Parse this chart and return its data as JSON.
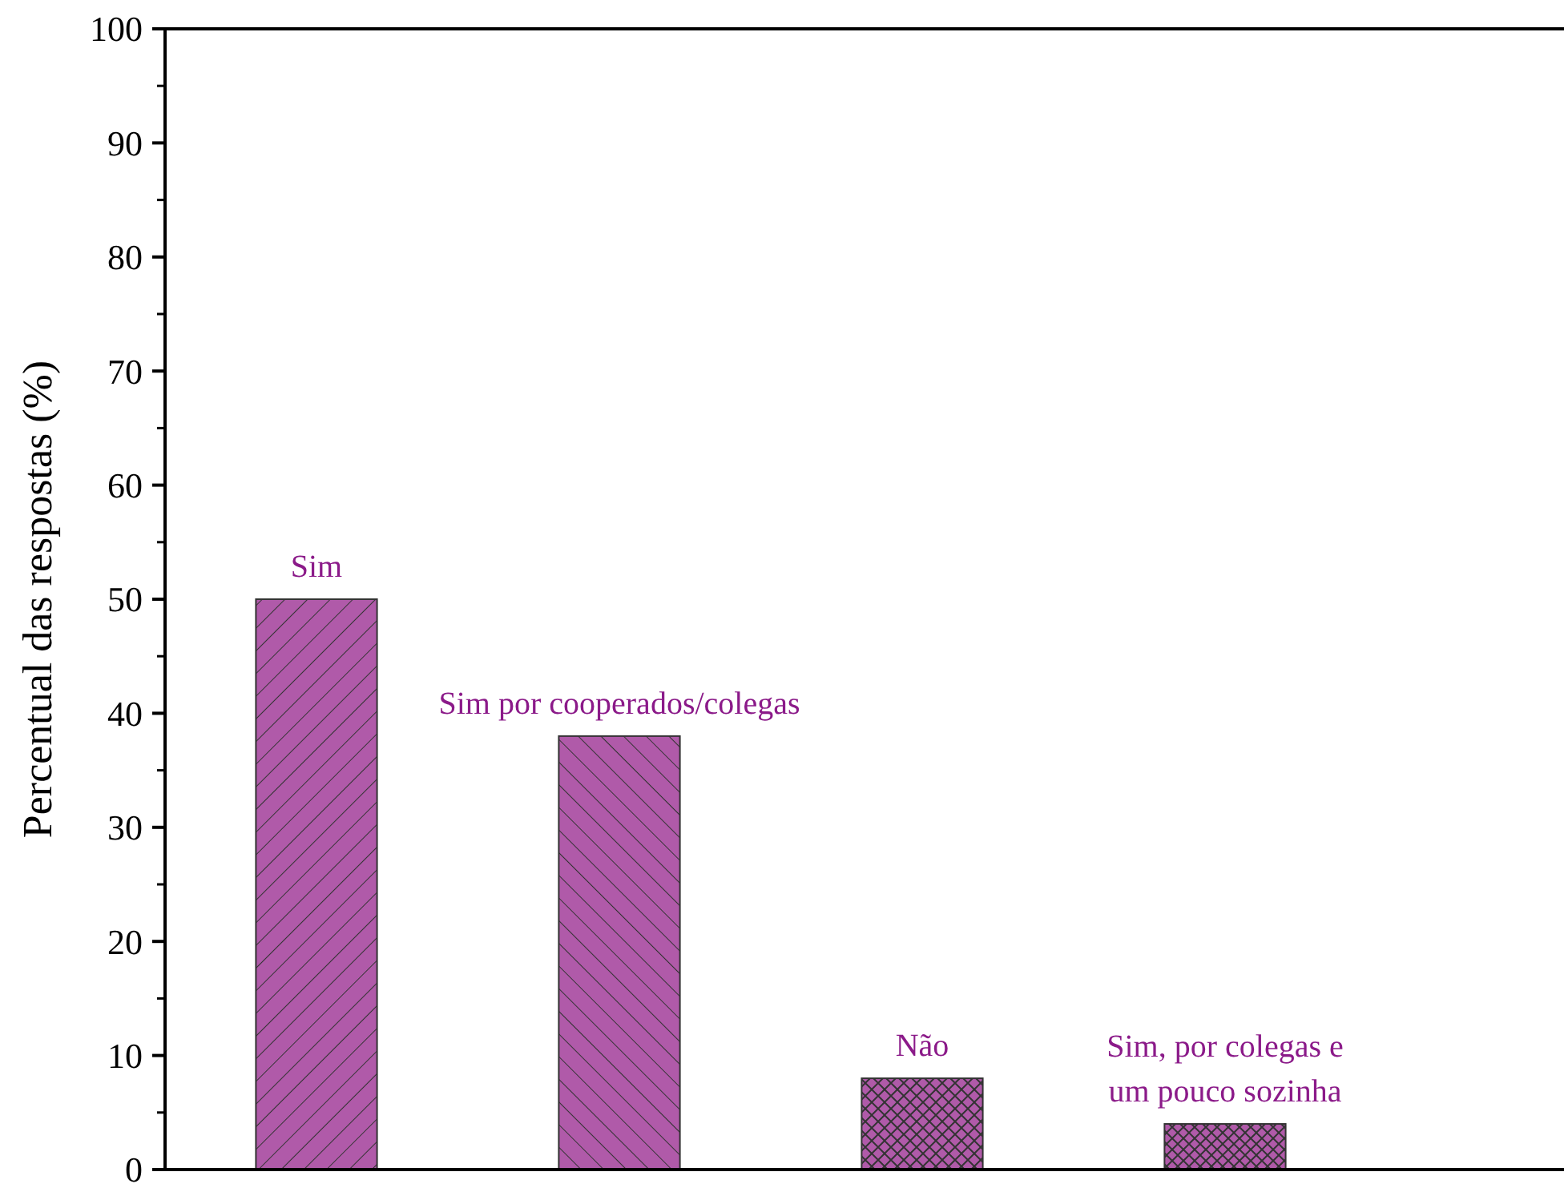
{
  "chart_data": {
    "type": "bar",
    "ylabel": "Percentual das respostas (%)",
    "categories": [
      "Sim",
      "Sim por cooperados/colegas",
      "Não",
      "Sim, por colegas e\num pouco sozinha"
    ],
    "values": [
      50,
      38,
      8,
      4
    ],
    "color": "#b05aa9",
    "ylim": [
      0,
      100
    ],
    "yticks": [
      0,
      10,
      20,
      30,
      40,
      50,
      60,
      70,
      80,
      90,
      100
    ],
    "grid": false
  }
}
